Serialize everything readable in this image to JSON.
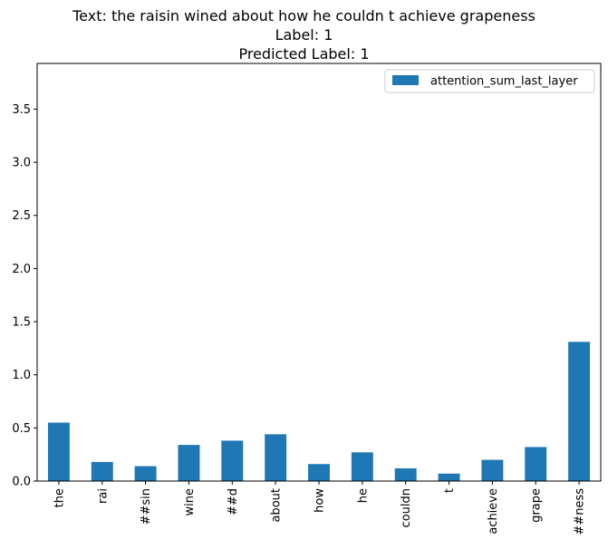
{
  "chart_data": {
    "type": "bar",
    "title_lines": [
      "Text: the raisin wined about how he couldn t achieve grapeness",
      "Label: 1",
      "Predicted Label: 1"
    ],
    "categories": [
      "the",
      "rai",
      "##sin",
      "wine",
      "##d",
      "about",
      "how",
      "he",
      "couldn",
      "t",
      "achieve",
      "grape",
      "##ness"
    ],
    "series": [
      {
        "name": "attention_sum_last_layer",
        "color": "#1f77b4",
        "values": [
          0.55,
          0.18,
          0.14,
          0.34,
          0.38,
          0.44,
          0.16,
          0.27,
          0.12,
          0.07,
          0.2,
          0.32,
          1.31
        ]
      }
    ],
    "yticks": [
      "0.0",
      "0.5",
      "1.0",
      "1.5",
      "2.0",
      "2.5",
      "3.0",
      "3.5"
    ],
    "ylim": [
      0,
      3.93
    ],
    "xlabel": "",
    "ylabel": "",
    "legend_position": "top-right",
    "grid": false
  }
}
